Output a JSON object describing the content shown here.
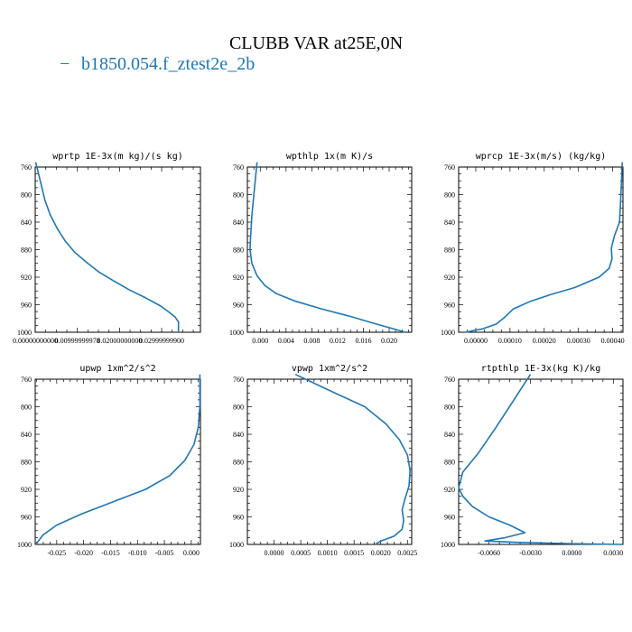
{
  "title": "CLUBB VAR at25E,0N",
  "legend": {
    "marker": "−",
    "label": "b1850.054.f_ztest2e_2b",
    "color": "#1f77b4"
  },
  "chart_data": [
    {
      "type": "line",
      "title": "wprtp  1E-3x(m kg)/(s kg)",
      "xlim": [
        0.0,
        0.0392
      ],
      "ylim": [
        760,
        1000
      ],
      "y_inverted": true,
      "xticks": [
        0.0,
        0.01,
        0.02,
        0.03
      ],
      "xtick_labels": [
        "0.00000000000",
        "0.00999999978",
        "0.02000000000",
        "0.02999999900"
      ],
      "yticks": [
        760,
        800,
        840,
        880,
        920,
        960,
        1000
      ],
      "series": [
        {
          "color": "#1f77b4",
          "x": [
            0.0001,
            0.0012,
            0.0023,
            0.0036,
            0.0053,
            0.0072,
            0.0094,
            0.0121,
            0.015,
            0.0185,
            0.0222,
            0.0262,
            0.0298,
            0.032,
            0.0332,
            0.034,
            0.034
          ],
          "y": [
            753,
            780,
            808,
            830,
            850,
            868,
            884,
            898,
            912,
            925,
            938,
            950,
            962,
            972,
            978,
            985,
            1000
          ]
        }
      ]
    },
    {
      "type": "line",
      "title": "wpthlp  1x(m K)/s",
      "xlim": [
        -0.002,
        0.0235
      ],
      "ylim": [
        760,
        1000
      ],
      "y_inverted": true,
      "xticks": [
        0.0,
        0.004,
        0.008,
        0.012,
        0.016,
        0.02
      ],
      "xtick_labels": [
        "0.000",
        "0.004",
        "0.008",
        "0.012",
        "0.016",
        "0.020"
      ],
      "yticks": [
        760,
        800,
        840,
        880,
        920,
        960,
        1000
      ],
      "series": [
        {
          "color": "#1f77b4",
          "x": [
            -0.0005,
            -0.0009,
            -0.0013,
            -0.0015,
            -0.0016,
            -0.0013,
            -0.0005,
            0.0007,
            0.0025,
            0.0055,
            0.0095,
            0.014,
            0.018,
            0.021,
            0.0225
          ],
          "y": [
            753,
            790,
            830,
            860,
            880,
            900,
            918,
            932,
            944,
            955,
            966,
            977,
            988,
            996,
            1000
          ]
        }
      ]
    },
    {
      "type": "line",
      "title": "wprcp  1E-3x(m/s) (kg/kg)",
      "xlim": [
        -5e-05,
        0.00043
      ],
      "ylim": [
        760,
        1000
      ],
      "y_inverted": true,
      "xticks": [
        0.0,
        0.0001,
        0.0002,
        0.0003,
        0.0004
      ],
      "xtick_labels": [
        "0.00000",
        "0.00010",
        "0.00020",
        "0.00030",
        "0.00040"
      ],
      "yticks": [
        760,
        800,
        840,
        880,
        920,
        960,
        1000
      ],
      "series": [
        {
          "color": "#1f77b4",
          "x": [
            0.000428,
            0.000425,
            0.00042,
            0.000405,
            0.000396,
            0.000398,
            0.00039,
            0.00036,
            0.00029,
            0.00022,
            0.00016,
            0.00011,
            8.5e-05,
            6e-05,
            2e-05,
            -3e-05
          ],
          "y": [
            753,
            790,
            840,
            860,
            878,
            893,
            907,
            920,
            935,
            945,
            955,
            966,
            978,
            988,
            995,
            1000
          ]
        }
      ]
    },
    {
      "type": "line",
      "title": "upwp  1xm^2/s^2",
      "xlim": [
        -0.029,
        0.0017
      ],
      "ylim": [
        760,
        1000
      ],
      "y_inverted": true,
      "xticks": [
        -0.025,
        -0.02,
        -0.015,
        -0.01,
        -0.005,
        0.0
      ],
      "xtick_labels": [
        "-0.025",
        "-0.020",
        "-0.015",
        "-0.010",
        "-0.005",
        "0.000"
      ],
      "yticks": [
        760,
        800,
        840,
        880,
        920,
        960,
        1000
      ],
      "series": [
        {
          "color": "#1f77b4",
          "x": [
            0.0016,
            0.0016,
            0.0013,
            0.0005,
            -0.0012,
            -0.004,
            -0.0085,
            -0.0145,
            -0.0205,
            -0.025,
            -0.0275,
            -0.0289
          ],
          "y": [
            753,
            800,
            830,
            855,
            878,
            900,
            920,
            938,
            956,
            972,
            986,
            1000
          ]
        }
      ]
    },
    {
      "type": "line",
      "title": "vpwp  1xm^2/s^2",
      "xlim": [
        -0.0005,
        0.00258
      ],
      "ylim": [
        760,
        1000
      ],
      "y_inverted": true,
      "xticks": [
        0.0,
        0.0005,
        0.001,
        0.0015,
        0.002,
        0.0025
      ],
      "xtick_labels": [
        "0.0000",
        "0.0005",
        "0.0010",
        "0.0015",
        "0.0020",
        "0.0025"
      ],
      "yticks": [
        760,
        800,
        840,
        880,
        920,
        960,
        1000
      ],
      "series": [
        {
          "color": "#1f77b4",
          "x": [
            0.0004,
            0.001,
            0.0017,
            0.0021,
            0.00235,
            0.0025,
            0.00255,
            0.00253,
            0.00245,
            0.0024,
            0.00243,
            0.0024,
            0.00225,
            0.002,
            0.0019
          ],
          "y": [
            753,
            775,
            800,
            825,
            848,
            870,
            893,
            915,
            935,
            950,
            965,
            978,
            988,
            995,
            1000
          ]
        }
      ]
    },
    {
      "type": "line",
      "title": "rtpthlp  1E-3x(kg K)/kg",
      "xlim": [
        -0.0082,
        0.0037
      ],
      "ylim": [
        760,
        1000
      ],
      "y_inverted": true,
      "xticks": [
        -0.006,
        -0.003,
        0.0,
        0.003
      ],
      "xtick_labels": [
        "-0.0060",
        "-0.0030",
        "0.0000",
        "0.0030"
      ],
      "yticks": [
        760,
        800,
        840,
        880,
        920,
        960,
        1000
      ],
      "series": [
        {
          "color": "#1f77b4",
          "x": [
            -0.003,
            -0.0042,
            -0.0055,
            -0.0068,
            -0.0079,
            -0.0082,
            -0.0079,
            -0.0072,
            -0.006,
            -0.0045,
            -0.0034,
            -0.0048,
            -0.0063,
            -0.004,
            0.0,
            0.0036
          ],
          "y": [
            753,
            790,
            830,
            868,
            895,
            918,
            930,
            945,
            960,
            972,
            983,
            990,
            995,
            997,
            999,
            1000
          ]
        }
      ]
    }
  ]
}
